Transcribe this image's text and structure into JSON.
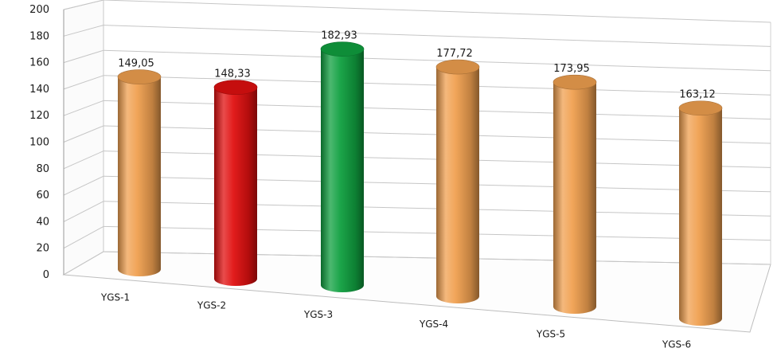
{
  "chart_data": {
    "type": "bar",
    "categories": [
      "YGS-1",
      "YGS-2",
      "YGS-3",
      "YGS-4",
      "YGS-5",
      "YGS-6"
    ],
    "values": [
      149.05,
      148.33,
      182.93,
      177.72,
      173.95,
      163.12
    ],
    "data_labels": [
      "149,05",
      "148,33",
      "182,93",
      "177,72",
      "173,95",
      "163,12"
    ],
    "yticks": [
      "0",
      "20",
      "40",
      "60",
      "80",
      "100",
      "120",
      "140",
      "160",
      "180",
      "200"
    ],
    "ylim": [
      0,
      200
    ],
    "grid": true,
    "style": "3d-cylinder",
    "bar_colors": [
      "#f0a050",
      "#e01010",
      "#10a040",
      "#f0a050",
      "#f0a050",
      "#f0a050"
    ]
  }
}
